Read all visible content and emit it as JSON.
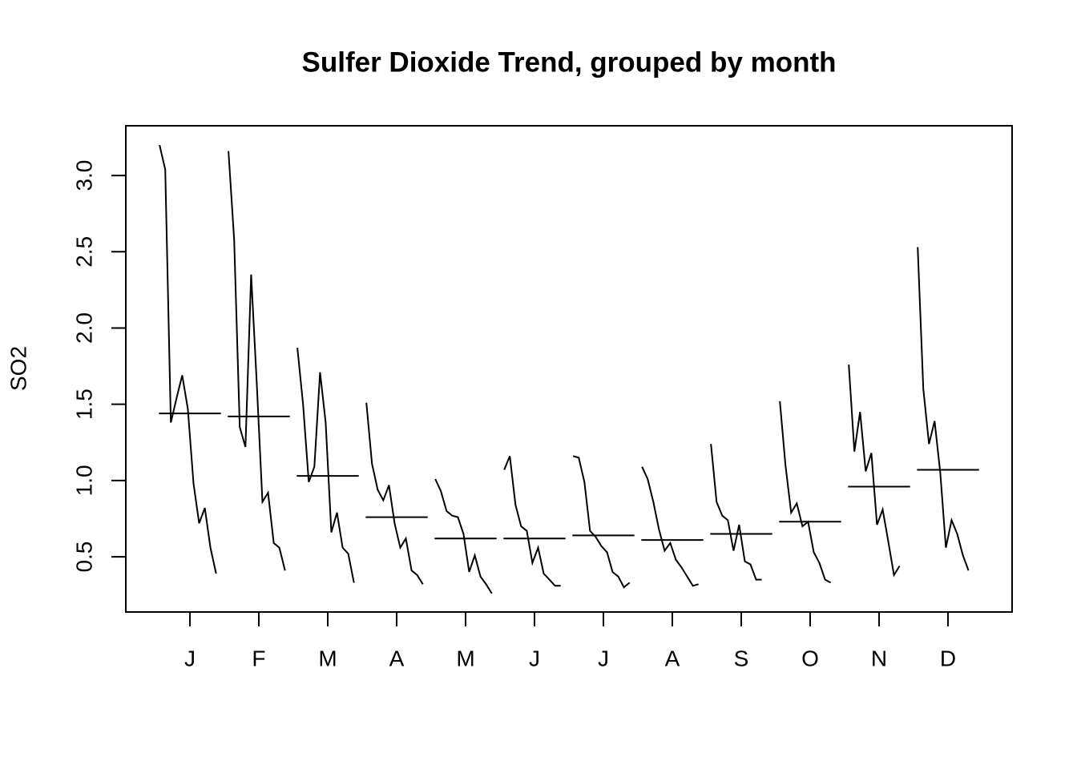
{
  "chart_data": {
    "type": "line",
    "title": "Sulfer Dioxide Trend, grouped by month",
    "ylabel": "SO2",
    "color": "#000000",
    "xlim": [
      0.07,
      12.93
    ],
    "xticks": [
      {
        "value": 1,
        "label": "J"
      },
      {
        "value": 2,
        "label": "F"
      },
      {
        "value": 3,
        "label": "M"
      },
      {
        "value": 4,
        "label": "A"
      },
      {
        "value": 5,
        "label": "M"
      },
      {
        "value": 6,
        "label": "J"
      },
      {
        "value": 7,
        "label": "J"
      },
      {
        "value": 8,
        "label": "A"
      },
      {
        "value": 9,
        "label": "S"
      },
      {
        "value": 10,
        "label": "O"
      },
      {
        "value": 11,
        "label": "N"
      },
      {
        "value": 12,
        "label": "D"
      }
    ],
    "ylim": [
      0.138,
      3.326
    ],
    "yticks": [
      {
        "value": 0.5,
        "label": "0.5"
      },
      {
        "value": 1,
        "label": "1.0"
      },
      1.5,
      {
        "value": 2,
        "label": "2.0"
      },
      2.5,
      {
        "value": 3,
        "label": "3.0"
      }
    ],
    "groups": [
      {
        "values": [
          3.2,
          3.04,
          1.38,
          1.54,
          1.69,
          1.47,
          0.98,
          0.72,
          0.82,
          0.56,
          0.39
        ],
        "mean": 1.44
      },
      {
        "values": [
          3.16,
          2.58,
          1.35,
          1.22,
          2.35,
          1.64,
          0.86,
          0.92,
          0.59,
          0.56,
          0.41
        ],
        "mean": 1.42
      },
      {
        "values": [
          1.87,
          1.5,
          0.99,
          1.09,
          1.71,
          1.38,
          0.66,
          0.79,
          0.56,
          0.52,
          0.33
        ],
        "mean": 1.03
      },
      {
        "values": [
          1.51,
          1.11,
          0.94,
          0.87,
          0.97,
          0.72,
          0.56,
          0.62,
          0.41,
          0.38,
          0.32
        ],
        "mean": 0.76
      },
      {
        "values": [
          1.01,
          0.93,
          0.8,
          0.77,
          0.76,
          0.65,
          0.4,
          0.51,
          0.37,
          0.32,
          0.26
        ],
        "mean": 0.62
      },
      {
        "values": [
          1.07,
          1.16,
          0.84,
          0.7,
          0.67,
          0.46,
          0.56,
          0.39,
          0.35,
          0.31,
          0.31
        ],
        "mean": 0.62
      },
      {
        "values": [
          1.16,
          1.15,
          0.99,
          0.67,
          0.63,
          0.57,
          0.53,
          0.4,
          0.37,
          0.3,
          0.33
        ],
        "mean": 0.64
      },
      {
        "values": [
          1.09,
          1.01,
          0.86,
          0.68,
          0.54,
          0.59,
          0.48,
          0.43,
          0.37,
          0.31,
          0.32
        ],
        "mean": 0.61
      },
      {
        "values": [
          1.24,
          0.86,
          0.77,
          0.74,
          0.54,
          0.71,
          0.47,
          0.45,
          0.35,
          0.35
        ],
        "mean": 0.65
      },
      {
        "values": [
          1.52,
          1.1,
          0.79,
          0.85,
          0.7,
          0.73,
          0.53,
          0.46,
          0.35,
          0.33
        ],
        "mean": 0.73
      },
      {
        "values": [
          1.76,
          1.19,
          1.45,
          1.06,
          1.18,
          0.71,
          0.81,
          0.6,
          0.38,
          0.44
        ],
        "mean": 0.96
      },
      {
        "values": [
          2.53,
          1.6,
          1.24,
          1.39,
          1.05,
          0.56,
          0.74,
          0.65,
          0.51,
          0.41
        ],
        "mean": 1.07
      }
    ]
  }
}
